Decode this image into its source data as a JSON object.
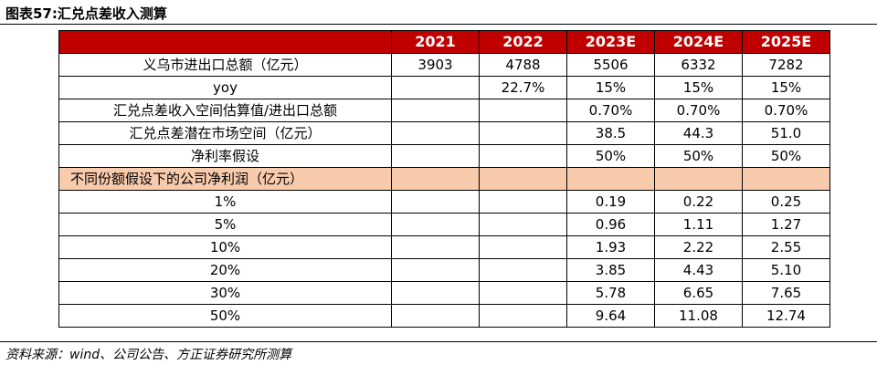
{
  "title": "图表57:汇兑点差收入测算",
  "table": {
    "headers": [
      "",
      "2021",
      "2022",
      "2023E",
      "2024E",
      "2025E"
    ],
    "rows": [
      [
        "义乌市进出口总额（亿元）",
        "3903",
        "4788",
        "5506",
        "6332",
        "7282"
      ],
      [
        "yoy",
        "",
        "22.7%",
        "15%",
        "15%",
        "15%"
      ],
      [
        "汇兑点差收入空间估算值/进出口总额",
        "",
        "",
        "0.70%",
        "0.70%",
        "0.70%"
      ],
      [
        "汇兑点差潜在市场空间（亿元）",
        "",
        "",
        "38.5",
        "44.3",
        "51.0"
      ],
      [
        "净利率假设",
        "",
        "",
        "50%",
        "50%",
        "50%"
      ],
      [
        "不同份额假设下的公司净利润（亿元）",
        "",
        "",
        "",
        "",
        ""
      ],
      [
        "1%",
        "",
        "",
        "0.19",
        "0.22",
        "0.25"
      ],
      [
        "5%",
        "",
        "",
        "0.96",
        "1.11",
        "1.27"
      ],
      [
        "10%",
        "",
        "",
        "1.93",
        "2.22",
        "2.55"
      ],
      [
        "20%",
        "",
        "",
        "3.85",
        "4.43",
        "5.10"
      ],
      [
        "30%",
        "",
        "",
        "5.78",
        "6.65",
        "7.65"
      ],
      [
        "50%",
        "",
        "",
        "9.64",
        "11.08",
        "12.74"
      ]
    ]
  },
  "footer": "资料来源：wind、公司公告、方正证券研究所测算",
  "colors": {
    "header_bg": "#c00000",
    "header_text": "#ffffff",
    "subheader_bg": "#f8cbad"
  }
}
